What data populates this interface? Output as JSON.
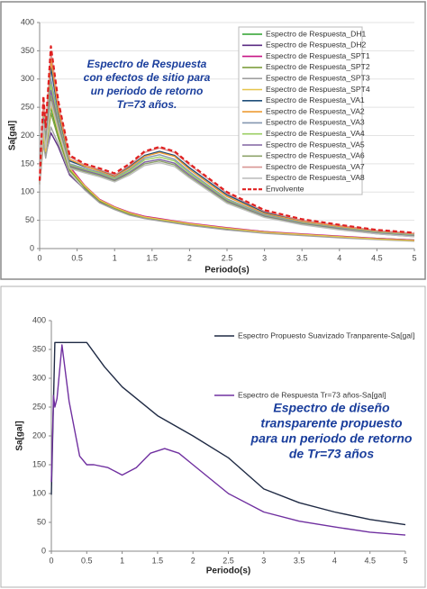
{
  "chart_data": [
    {
      "type": "line",
      "xlabel": "Periodo(s)",
      "ylabel": "Sa[gal]",
      "annotation_lines": [
        "Espectro de Respuesta",
        "con efectos de sitio para",
        "un periodo de retorno",
        "Tr=73 años."
      ],
      "xlim": [
        0,
        5
      ],
      "ylim": [
        0,
        400
      ],
      "xticks": [
        0,
        0.5,
        1,
        1.5,
        2,
        2.5,
        3,
        3.5,
        4,
        4.5,
        5
      ],
      "yticks": [
        0,
        50,
        100,
        150,
        200,
        250,
        300,
        350,
        400
      ],
      "grid": true,
      "legend": "upper right",
      "x": [
        0,
        0.05,
        0.08,
        0.15,
        0.25,
        0.4,
        0.6,
        0.8,
        1,
        1.2,
        1.4,
        1.6,
        1.8,
        2,
        2.5,
        3,
        3.5,
        4,
        4.5,
        5
      ],
      "series": [
        {
          "name": "Espectro de Respuesta_DH1",
          "color": "#2ca02c",
          "values": [
            115,
            200,
            170,
            250,
            200,
            140,
            110,
            85,
            72,
            62,
            56,
            52,
            48,
            44,
            36,
            30,
            25,
            21,
            18,
            15
          ]
        },
        {
          "name": "Espectro de Respuesta_DH2",
          "color": "#5b2c83",
          "values": [
            114,
            190,
            165,
            205,
            180,
            130,
            105,
            82,
            70,
            60,
            54,
            50,
            46,
            42,
            34,
            28,
            24,
            20,
            17,
            14
          ]
        },
        {
          "name": "Espectro de Respuesta_SPT1",
          "color": "#c71585",
          "values": [
            116,
            210,
            175,
            265,
            210,
            145,
            112,
            87,
            74,
            64,
            57,
            53,
            49,
            45,
            37,
            30,
            26,
            22,
            18,
            15
          ]
        },
        {
          "name": "Espectro de Respuesta_SPT2",
          "color": "#7f9f3f",
          "values": [
            115,
            195,
            168,
            240,
            195,
            138,
            108,
            84,
            71,
            61,
            55,
            51,
            47,
            43,
            35,
            29,
            25,
            21,
            17,
            14
          ]
        },
        {
          "name": "Espectro de Respuesta_SPT3",
          "color": "#a0a0a0",
          "values": [
            114,
            185,
            160,
            215,
            185,
            133,
            104,
            81,
            69,
            59,
            53,
            49,
            45,
            41,
            33,
            27,
            23,
            19,
            16,
            13
          ]
        },
        {
          "name": "Espectro de Respuesta_SPT4",
          "color": "#e6c44a",
          "values": [
            115,
            205,
            172,
            255,
            205,
            142,
            111,
            86,
            73,
            63,
            56,
            52,
            48,
            44,
            36,
            29,
            25,
            21,
            17,
            14
          ]
        },
        {
          "name": "Espectro de Respuesta_VA1",
          "color": "#1f4e79",
          "values": [
            118,
            255,
            205,
            320,
            240,
            155,
            145,
            138,
            128,
            145,
            165,
            172,
            165,
            143,
            95,
            64,
            49,
            40,
            31,
            26
          ]
        },
        {
          "name": "Espectro de Respuesta_VA2",
          "color": "#ed9b33",
          "values": [
            118,
            250,
            200,
            335,
            245,
            158,
            146,
            137,
            127,
            143,
            163,
            170,
            163,
            140,
            92,
            62,
            48,
            39,
            30,
            25
          ]
        },
        {
          "name": "Espectro de Respuesta_VA3",
          "color": "#8497b0",
          "values": [
            117,
            240,
            195,
            300,
            230,
            150,
            142,
            135,
            125,
            140,
            160,
            166,
            158,
            136,
            88,
            60,
            46,
            37,
            29,
            24
          ]
        },
        {
          "name": "Espectro de Respuesta_VA4",
          "color": "#9bcf63",
          "values": [
            117,
            235,
            190,
            290,
            225,
            148,
            140,
            133,
            123,
            138,
            157,
            162,
            155,
            133,
            86,
            58,
            45,
            36,
            28,
            23
          ]
        },
        {
          "name": "Espectro de Respuesta_VA5",
          "color": "#8064a2",
          "values": [
            116,
            230,
            185,
            280,
            220,
            146,
            138,
            131,
            121,
            135,
            153,
            158,
            151,
            130,
            84,
            57,
            44,
            35,
            27,
            22
          ]
        },
        {
          "name": "Espectro de Respuesta_VA6",
          "color": "#8ea36b",
          "values": [
            116,
            225,
            180,
            270,
            215,
            144,
            136,
            129,
            119,
            133,
            150,
            155,
            148,
            127,
            82,
            56,
            43,
            34,
            26,
            21
          ]
        },
        {
          "name": "Espectro de Respuesta_VA7",
          "color": "#d99694",
          "values": [
            120,
            265,
            210,
            350,
            255,
            162,
            148,
            140,
            130,
            147,
            170,
            178,
            170,
            148,
            98,
            66,
            50,
            41,
            32,
            27
          ]
        },
        {
          "name": "Espectro de Respuesta_VA8",
          "color": "#bfbfbf",
          "values": [
            115,
            220,
            178,
            260,
            210,
            142,
            134,
            127,
            118,
            130,
            147,
            152,
            145,
            125,
            80,
            55,
            42,
            33,
            26,
            21
          ]
        },
        {
          "name": "Envolvente",
          "color": "#e02020",
          "dashed": true,
          "values": [
            120,
            270,
            215,
            358,
            260,
            165,
            150,
            142,
            133,
            150,
            172,
            180,
            172,
            150,
            100,
            68,
            52,
            42,
            33,
            28
          ]
        }
      ]
    },
    {
      "type": "line",
      "xlabel": "Periodo(s)",
      "ylabel": "Sa[gal]",
      "annotation_lines": [
        "Espectro de diseño",
        "transparente propuesto",
        "para un periodo de retorno",
        "de Tr=73 años"
      ],
      "xlim": [
        0,
        5
      ],
      "ylim": [
        0,
        400
      ],
      "xticks": [
        0,
        0.5,
        1,
        1.5,
        2,
        2.5,
        3,
        3.5,
        4,
        4.5,
        5
      ],
      "yticks": [
        0,
        50,
        100,
        150,
        200,
        250,
        300,
        350,
        400
      ],
      "grid": false,
      "legend": "upper right",
      "series": [
        {
          "name": "Espectro Propuesto Suavizado Tranparente-Sa[gal]",
          "color": "#1f2a44",
          "x": [
            0,
            0.05,
            0.5,
            0.75,
            1,
            1.5,
            2,
            2.5,
            3,
            3.5,
            4,
            4.5,
            5
          ],
          "values": [
            98,
            362,
            362,
            320,
            285,
            235,
            200,
            162,
            108,
            84,
            68,
            55,
            46
          ]
        },
        {
          "name": "Espectro de Respuesta Tr=73 años-Sa[gal]",
          "color": "#7030a0",
          "x": [
            0,
            0.03,
            0.05,
            0.08,
            0.15,
            0.25,
            0.4,
            0.5,
            0.6,
            0.8,
            1,
            1.2,
            1.4,
            1.6,
            1.8,
            2,
            2.5,
            3,
            3.5,
            4,
            4.5,
            5
          ],
          "values": [
            120,
            270,
            250,
            265,
            358,
            260,
            165,
            150,
            150,
            145,
            132,
            145,
            170,
            178,
            170,
            150,
            100,
            68,
            52,
            42,
            33,
            28
          ]
        }
      ]
    }
  ]
}
